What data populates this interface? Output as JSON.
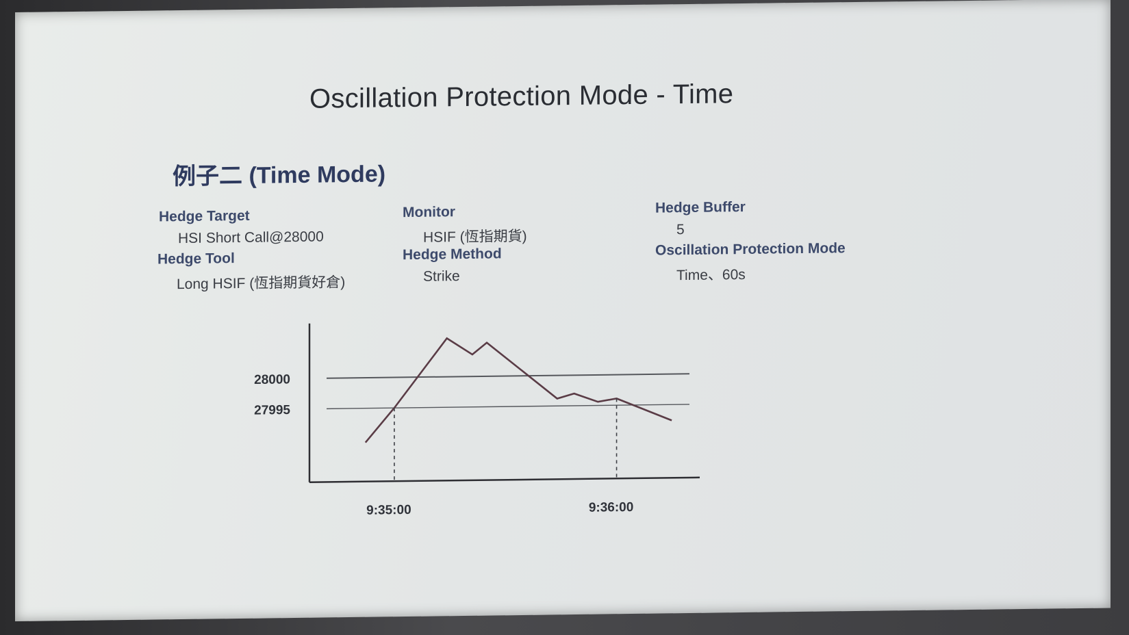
{
  "slide": {
    "title": "Oscillation Protection Mode - Time",
    "subtitle": "例子二 (Time Mode)",
    "fields": {
      "hedge_target": {
        "label": "Hedge Target",
        "value": "HSI Short Call@28000"
      },
      "hedge_tool": {
        "label": "Hedge Tool",
        "value": "Long HSIF (恆指期貨好倉)"
      },
      "monitor": {
        "label": "Monitor",
        "value": "HSIF (恆指期貨)"
      },
      "hedge_method": {
        "label": "Hedge Method",
        "value": "Strike"
      },
      "hedge_buffer": {
        "label": "Hedge Buffer",
        "value": "5"
      },
      "oscillation_mode": {
        "label": "Oscillation Protection Mode",
        "value": "Time、60s"
      }
    }
  },
  "chart_data": {
    "type": "line",
    "title": "",
    "xlabel": "",
    "ylabel": "",
    "x_ticks": [
      "9:35:00",
      "9:36:00"
    ],
    "y_ticks": [
      "28000",
      "27995"
    ],
    "reference_lines": [
      {
        "label": "28000",
        "value": 28000
      },
      {
        "label": "27995",
        "value": 27995
      }
    ],
    "series": [
      {
        "points": [
          {
            "x": 0.66,
            "y": 27989.4
          },
          {
            "x": 1.0,
            "y": 27995.0
          },
          {
            "x": 1.62,
            "y": 28006.3
          },
          {
            "x": 1.92,
            "y": 28003.6
          },
          {
            "x": 2.09,
            "y": 28005.5
          },
          {
            "x": 2.92,
            "y": 27996.2
          },
          {
            "x": 3.12,
            "y": 27997.0
          },
          {
            "x": 3.4,
            "y": 27995.6
          },
          {
            "x": 3.62,
            "y": 27996.1
          },
          {
            "x": 4.27,
            "y": 27992.4
          }
        ]
      }
    ],
    "markers": [
      {
        "label": "9:35:00",
        "x": 1.0
      },
      {
        "label": "9:36:00",
        "x": 3.62
      }
    ],
    "xlim": [
      0,
      4.6
    ],
    "ylim": [
      27983,
      28009
    ],
    "grid": false,
    "legend": "none",
    "colors": {
      "line": "#5a3c46",
      "axis": "#2e2e33",
      "reference": "#55575c"
    }
  }
}
